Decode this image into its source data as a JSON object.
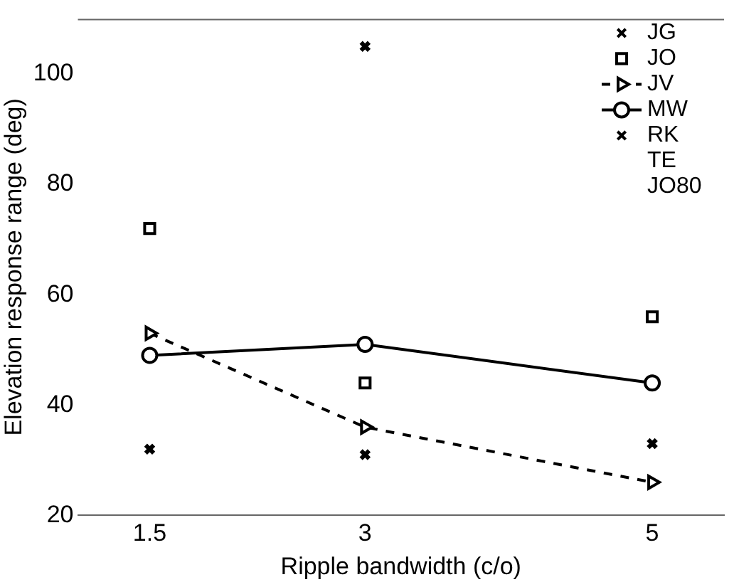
{
  "chart_data": {
    "type": "line",
    "xlabel": "Ripple bandwidth (c/o)",
    "ylabel": "Elevation response range (deg)",
    "x": [
      1.5,
      3,
      5
    ],
    "xlim": [
      1,
      5.5
    ],
    "xticks": [
      1.5,
      3,
      5
    ],
    "ylim": [
      20,
      110
    ],
    "yticks": [
      20,
      40,
      60,
      80,
      100
    ],
    "grid": false,
    "legend": "top right",
    "series": [
      {
        "name": "JG",
        "type": "scatter",
        "marker": "cross",
        "color": "#000000",
        "values": [
          null,
          105,
          null
        ]
      },
      {
        "name": "JO",
        "type": "scatter",
        "marker": "square",
        "color": "#000000",
        "values": [
          72,
          44,
          56
        ]
      },
      {
        "name": "JV",
        "type": "line",
        "marker": "triangle",
        "line_style": "dashed",
        "color": "#000000",
        "values": [
          53,
          36,
          26
        ]
      },
      {
        "name": "MW",
        "type": "line",
        "marker": "circle",
        "line_style": "solid",
        "color": "#000000",
        "values": [
          49,
          51,
          44
        ]
      },
      {
        "name": "RK",
        "type": "scatter",
        "marker": "cross",
        "color": "#000000",
        "values": [
          32,
          31,
          33
        ]
      },
      {
        "name": "TE",
        "type": "scatter",
        "marker": "none",
        "color": "#000000",
        "values": [
          null,
          null,
          null
        ]
      },
      {
        "name": "JO80",
        "type": "scatter",
        "marker": "none",
        "color": "#000000",
        "values": [
          null,
          null,
          null
        ]
      }
    ]
  }
}
